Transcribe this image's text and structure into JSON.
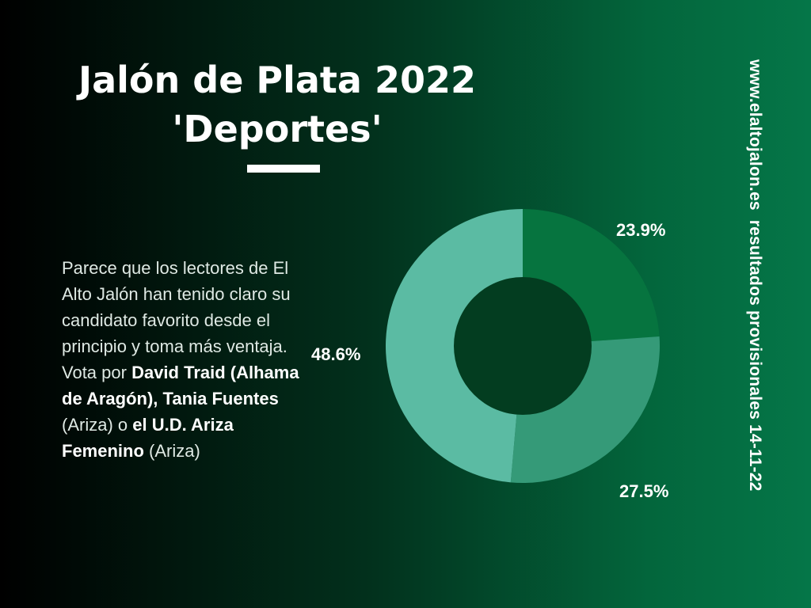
{
  "header": {
    "title_line1": "Jalón de Plata 2022",
    "title_line2": "'Deportes'"
  },
  "body": {
    "intro": "Parece que los lectores de El Alto Jalón han tenido claro su candidato favorito desde el principio y toma más ventaja. Vota por ",
    "cand1": "David Traid (Alhama de Aragón),",
    "cand2": "Tania Fuentes",
    "cand2_place": " (Ariza)",
    "joiner": " o ",
    "cand3": "el U.D. Ariza Femenino",
    "cand3_place": " (Ariza)"
  },
  "sidebar": {
    "text": "www.elaltojalon.es  resultados provisionales 14-11-22"
  },
  "chart_data": {
    "type": "pie",
    "donut": true,
    "values": [
      23.9,
      27.5,
      48.6
    ],
    "labels": [
      "23.9%",
      "27.5%",
      "48.6%"
    ],
    "colors": [
      "#06743f",
      "#359a78",
      "#5bbba3"
    ],
    "hole_color": "#033d20"
  }
}
